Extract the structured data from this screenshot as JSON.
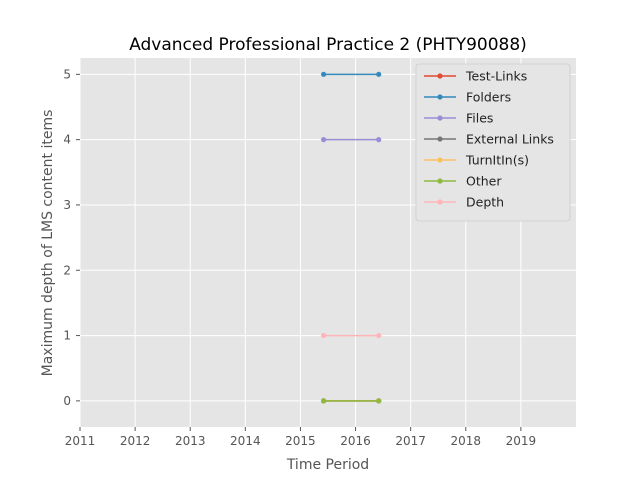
{
  "chart_data": {
    "type": "line",
    "title": "Advanced Professional Practice 2 (PHTY90088)",
    "xlabel": "Time Period",
    "ylabel": "Maximum depth of LMS content items",
    "xlim": [
      2011,
      2020
    ],
    "ylim": [
      -0.4,
      5.25
    ],
    "xticks": [
      "2011",
      "2012",
      "2013",
      "2014",
      "2015",
      "2016",
      "2017",
      "2018",
      "2019"
    ],
    "yticks": [
      "0",
      "1",
      "2",
      "3",
      "4",
      "5"
    ],
    "grid": true,
    "legend_position": "top-right",
    "series": [
      {
        "name": "Test-Links",
        "color": "#E24A33",
        "x": [
          2015.42,
          2016.42
        ],
        "values": [
          0,
          0
        ]
      },
      {
        "name": "Folders",
        "color": "#348ABD",
        "x": [
          2015.42,
          2016.42
        ],
        "values": [
          5,
          5
        ]
      },
      {
        "name": "Files",
        "color": "#988ED5",
        "x": [
          2015.42,
          2016.42
        ],
        "values": [
          4,
          4
        ]
      },
      {
        "name": "External Links",
        "color": "#777777",
        "x": [
          2015.42,
          2016.42
        ],
        "values": [
          0,
          0
        ]
      },
      {
        "name": "TurnItIn(s)",
        "color": "#FBC15E",
        "x": [
          2015.42,
          2016.42
        ],
        "values": [
          0,
          0
        ]
      },
      {
        "name": "Other",
        "color": "#8EBA42",
        "x": [
          2015.42,
          2016.42
        ],
        "values": [
          0,
          0
        ]
      },
      {
        "name": "Depth",
        "color": "#FFB5B8",
        "x": [
          2015.42,
          2016.42
        ],
        "values": [
          1,
          1
        ]
      }
    ]
  }
}
